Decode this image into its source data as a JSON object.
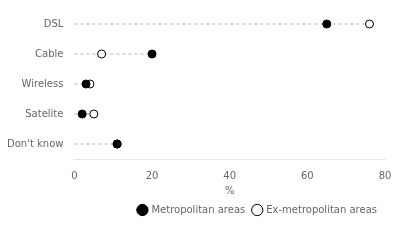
{
  "chart_data": {
    "type": "dot",
    "categories": [
      "DSL",
      "Cable",
      "Wireless",
      "Satelite",
      "Don't know"
    ],
    "series": [
      {
        "name": "Metropolitan areas",
        "color": "black",
        "marker": "circle",
        "values": [
          65,
          20,
          3,
          2,
          11
        ]
      },
      {
        "name": "Ex-metropolitan areas",
        "color": "white",
        "marker": "circle",
        "values": [
          76,
          7,
          4,
          5,
          11
        ]
      }
    ],
    "xlabel": "%",
    "xlim": [
      0,
      80
    ],
    "xticks": [
      0,
      20,
      40,
      60,
      80
    ],
    "grid": false,
    "legend": "lower right"
  }
}
